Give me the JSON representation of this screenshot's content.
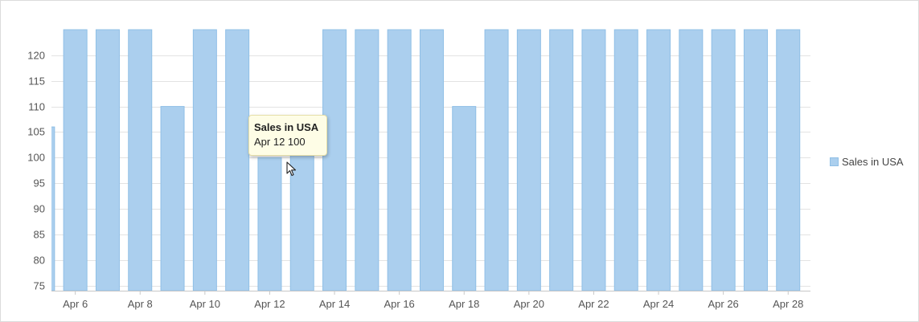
{
  "chart_data": {
    "type": "bar",
    "categories": [
      "Apr 5",
      "Apr 6",
      "Apr 7",
      "Apr 8",
      "Apr 9",
      "Apr 10",
      "Apr 11",
      "Apr 12",
      "Apr 13",
      "Apr 14",
      "Apr 15",
      "Apr 16",
      "Apr 17",
      "Apr 18",
      "Apr 19",
      "Apr 20",
      "Apr 21",
      "Apr 22",
      "Apr 23",
      "Apr 24",
      "Apr 25",
      "Apr 26",
      "Apr 27",
      "Apr 28"
    ],
    "series": [
      {
        "name": "Sales in USA",
        "values": [
          106,
          125,
          125,
          125,
          110,
          125,
          125,
          100,
          106,
          125,
          125,
          125,
          125,
          110,
          125,
          125,
          125,
          125,
          125,
          125,
          125,
          125,
          125,
          125
        ]
      }
    ],
    "x_tick_labels": [
      "Apr 6",
      "Apr 8",
      "Apr 10",
      "Apr 12",
      "Apr 14",
      "Apr 16",
      "Apr 18",
      "Apr 20",
      "Apr 22",
      "Apr 24",
      "Apr 26",
      "Apr 28"
    ],
    "y_ticks": [
      75,
      80,
      85,
      90,
      95,
      100,
      105,
      110,
      115,
      120
    ],
    "ylim": [
      74,
      125
    ],
    "title": "",
    "xlabel": "",
    "ylabel": "",
    "grid": true,
    "legend_position": "right",
    "colors": {
      "bar_fill": "#abcfee",
      "bar_stroke": "#8fbfe6"
    }
  },
  "legend": {
    "label": "Sales in USA"
  },
  "tooltip": {
    "title": "Sales in USA",
    "value": "Apr 12 100"
  }
}
